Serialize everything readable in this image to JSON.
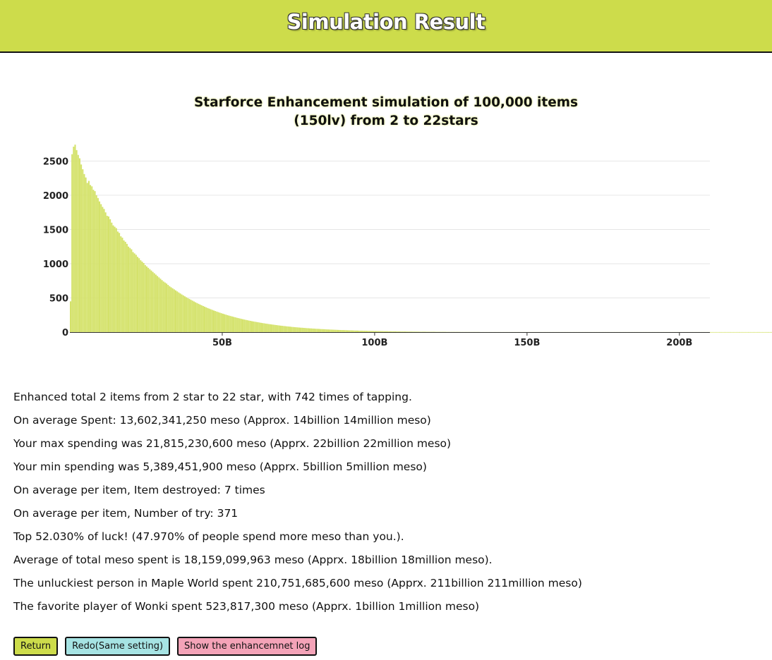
{
  "header": {
    "title": "Simulation Result",
    "color": "#cddc4b"
  },
  "chart_data": {
    "type": "bar",
    "title_line1": "Starforce Enhancement simulation of 100,000 items",
    "title_line2": "(150lv) from 2 to 22stars",
    "bar_color": "#d4e26a",
    "grid": true,
    "xlim": [
      0,
      210
    ],
    "x_unit": "billion meso",
    "ylim": [
      0,
      2700
    ],
    "y_ticks": [
      0,
      500,
      1000,
      1500,
      2000,
      2500
    ],
    "x_ticks": [
      {
        "value": 50,
        "label": "50B"
      },
      {
        "value": 100,
        "label": "100B"
      },
      {
        "value": 150,
        "label": "150B"
      },
      {
        "value": 200,
        "label": "200B"
      }
    ],
    "bin_width": 0.5,
    "x_start": 0,
    "values": [
      450,
      2600,
      2710,
      2740,
      2660,
      2590,
      2540,
      2450,
      2380,
      2310,
      2260,
      2180,
      2210,
      2150,
      2130,
      2080,
      2060,
      2000,
      1960,
      1910,
      1870,
      1830,
      1800,
      1750,
      1700,
      1690,
      1650,
      1600,
      1560,
      1540,
      1520,
      1470,
      1450,
      1400,
      1380,
      1340,
      1320,
      1290,
      1250,
      1230,
      1210,
      1170,
      1150,
      1130,
      1100,
      1080,
      1050,
      1030,
      1010,
      980,
      960,
      940,
      920,
      900,
      880,
      860,
      840,
      820,
      800,
      780,
      760,
      740,
      725,
      710,
      690,
      670,
      655,
      640,
      625,
      610,
      595,
      580,
      565,
      550,
      537,
      523,
      510,
      497,
      485,
      472,
      460,
      448,
      436,
      425,
      414,
      403,
      392,
      382,
      372,
      362,
      352,
      343,
      334,
      325,
      316,
      308,
      300,
      292,
      284,
      276,
      269,
      262,
      255,
      248,
      241,
      235,
      229,
      223,
      217,
      211,
      205,
      200,
      194,
      189,
      184,
      179,
      174,
      169,
      165,
      160,
      156,
      152,
      148,
      144,
      140,
      136,
      132,
      129,
      125,
      122,
      118,
      115,
      112,
      109,
      106,
      103,
      100,
      97,
      94,
      92,
      89,
      87,
      84,
      82,
      80,
      77,
      75,
      73,
      71,
      69,
      67,
      65,
      64,
      62,
      60,
      58,
      57,
      55,
      54,
      52,
      51,
      49,
      48,
      47,
      45,
      44,
      43,
      42,
      40,
      39,
      38,
      37,
      36,
      35,
      34,
      33,
      32,
      31,
      30,
      30,
      29,
      28,
      27,
      26,
      26,
      25,
      24,
      23,
      23,
      22,
      21,
      21,
      20,
      20,
      19,
      18,
      18,
      17,
      17,
      16,
      16,
      15,
      15,
      15,
      14,
      14,
      13,
      13,
      13,
      12,
      12,
      11,
      11,
      11,
      10,
      10,
      10,
      9,
      9,
      9,
      9,
      8,
      8,
      8,
      8,
      7,
      7,
      7,
      7,
      6,
      6,
      6,
      6,
      6,
      5,
      5,
      5,
      5,
      5,
      5,
      4,
      4,
      4,
      4,
      4,
      4,
      4,
      3,
      3,
      3,
      3,
      3,
      3,
      3,
      3,
      3,
      2,
      2,
      2,
      2,
      2,
      2,
      2,
      2,
      2,
      2,
      2,
      2,
      2,
      1,
      1,
      1,
      1,
      1,
      1,
      1,
      1,
      1,
      1,
      1,
      1,
      1,
      1,
      1,
      1,
      1,
      1,
      1,
      1,
      1,
      1,
      1,
      1,
      1,
      1,
      1,
      1,
      1,
      1,
      1,
      1,
      1,
      1,
      1,
      1,
      1,
      1,
      1,
      1,
      1,
      1,
      1,
      1,
      1,
      1,
      1,
      1,
      1,
      1,
      1,
      1,
      1,
      1,
      1,
      1,
      1,
      1,
      1,
      1,
      1,
      1,
      1,
      1,
      1,
      1,
      1,
      1,
      1,
      1,
      1,
      1,
      1,
      1,
      1,
      1,
      1,
      1,
      1,
      1,
      1,
      1,
      1,
      1,
      1,
      1,
      1,
      1,
      1,
      1,
      1,
      1,
      1,
      1,
      1,
      1,
      1,
      1,
      1,
      1,
      1,
      1,
      1,
      1,
      1,
      1,
      1,
      1,
      1,
      1,
      1,
      1,
      1,
      1,
      1,
      1,
      1,
      1,
      1,
      1,
      1,
      1,
      1,
      1,
      1,
      1,
      1,
      1,
      1,
      1,
      1,
      1,
      1,
      1,
      1,
      1,
      1,
      1,
      1,
      1,
      1,
      1,
      1,
      1,
      1,
      1,
      1,
      1,
      1,
      1,
      1,
      1,
      1,
      1,
      1,
      1,
      1,
      1,
      1,
      1,
      1,
      1,
      1,
      1,
      1,
      1,
      1,
      1,
      1,
      1,
      1,
      1,
      1,
      1,
      1,
      1,
      1,
      1,
      1,
      1,
      1,
      1,
      1,
      1,
      1,
      1,
      1,
      1,
      1,
      1,
      1,
      1,
      1,
      1,
      1,
      1,
      1,
      1,
      1
    ]
  },
  "stats": {
    "lines": [
      "Enhanced total 2 items from 2 star to 22 star, with 742 times of tapping.",
      "On average Spent: 13,602,341,250 meso (Approx. 14billion 14million meso)",
      "Your max spending was 21,815,230,600 meso (Apprx. 22billion 22million meso)",
      "Your min spending was 5,389,451,900 meso (Apprx. 5billion 5million meso)",
      "On average per item, Item destroyed: 7 times",
      "On average per item, Number of try: 371",
      "Top 52.030% of luck! (47.970% of people spend more meso than you.).",
      "Average of total meso spent is 18,159,099,963 meso (Apprx. 18billion 18million meso).",
      "The unluckiest person in Maple World spent 210,751,685,600 meso (Apprx. 211billion 211million meso)",
      "The favorite player of Wonki spent 523,817,300 meso (Apprx. 1billion 1million meso)"
    ]
  },
  "buttons": {
    "return_label": "Return",
    "return_color": "#cddc4b",
    "redo_label": "Redo(Same setting)",
    "redo_color": "#a6e3e3",
    "log_label": "Show the enhancemnet log",
    "log_color": "#f4a3b8"
  }
}
